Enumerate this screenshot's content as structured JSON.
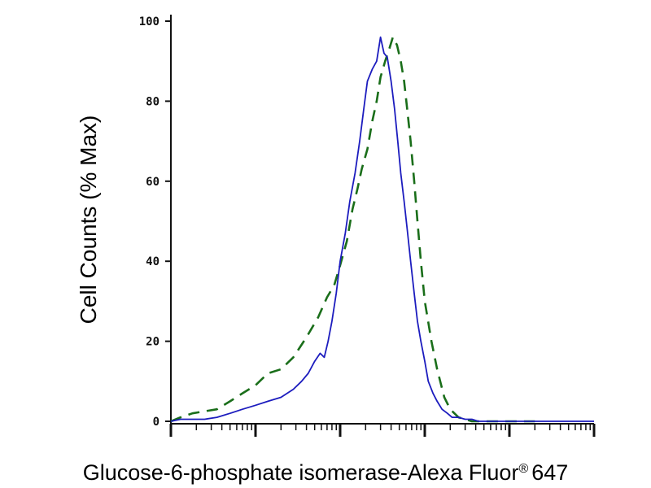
{
  "chart_data": {
    "type": "line",
    "xlabel": "Glucose-6-phosphate isomerase-Alexa Fluor",
    "xlabel_symbol": "®",
    "xlabel_suffix": "647",
    "ylabel": "Cell Counts (% Max)",
    "x_scale": "log",
    "xlim": [
      0.001,
      100
    ],
    "ylim": [
      0,
      100
    ],
    "yticks": [
      0,
      20,
      40,
      60,
      80,
      100
    ],
    "ytick_labels": [
      "0",
      "20",
      "40",
      "60",
      "80",
      "100"
    ],
    "grid": false,
    "legend": false,
    "series": [
      {
        "color": "#1a6e1a",
        "style": "dashed",
        "x": [
          0.001,
          0.0013,
          0.0018,
          0.0025,
          0.0035,
          0.005,
          0.007,
          0.01,
          0.014,
          0.02,
          0.028,
          0.04,
          0.055,
          0.07,
          0.085,
          0.1,
          0.12,
          0.14,
          0.16,
          0.18,
          0.21,
          0.24,
          0.27,
          0.3,
          0.34,
          0.38,
          0.42,
          0.47,
          0.52,
          0.57,
          0.62,
          0.68,
          0.75,
          0.82,
          0.9,
          1.0,
          1.2,
          1.4,
          1.7,
          2.0,
          2.5,
          3.0,
          3.6,
          4.3,
          5.0,
          6.0,
          8.0,
          10,
          14,
          20
        ],
        "y": [
          0,
          1,
          2,
          2.5,
          3,
          5,
          7,
          9,
          12,
          13,
          16,
          21,
          26,
          31,
          34,
          39,
          45,
          53,
          58,
          63,
          68,
          75,
          80,
          86,
          90,
          93,
          96,
          94,
          90,
          85,
          78,
          70,
          60,
          50,
          40,
          30,
          20,
          13,
          6,
          3,
          1,
          0.5,
          0,
          0,
          0,
          0,
          0,
          0,
          0,
          0
        ]
      },
      {
        "color": "#1c1cbe",
        "style": "solid",
        "x": [
          0.001,
          0.0013,
          0.0018,
          0.0025,
          0.0035,
          0.005,
          0.007,
          0.01,
          0.014,
          0.02,
          0.028,
          0.035,
          0.042,
          0.05,
          0.058,
          0.065,
          0.072,
          0.08,
          0.09,
          0.1,
          0.115,
          0.13,
          0.15,
          0.17,
          0.19,
          0.21,
          0.24,
          0.27,
          0.3,
          0.33,
          0.36,
          0.4,
          0.44,
          0.48,
          0.52,
          0.57,
          0.62,
          0.68,
          0.75,
          0.82,
          0.9,
          1.0,
          1.1,
          1.25,
          1.4,
          1.6,
          1.85,
          2.1,
          2.5,
          3.0,
          3.6,
          4.3,
          5.0,
          6.0,
          7.0,
          8.0,
          10,
          12,
          15,
          20,
          30,
          50,
          100
        ],
        "y": [
          0,
          0.5,
          0.5,
          0.5,
          1,
          2,
          3,
          4,
          5,
          6,
          8,
          10,
          12,
          15,
          17,
          16,
          20,
          25,
          32,
          40,
          47,
          55,
          62,
          70,
          78,
          85,
          88,
          90,
          96,
          92,
          91,
          85,
          78,
          70,
          62,
          55,
          48,
          40,
          32,
          25,
          20,
          15,
          10,
          7,
          5,
          3,
          2,
          1,
          1,
          0.5,
          0.5,
          0,
          0,
          0,
          0,
          0,
          0,
          0,
          0,
          0,
          0,
          0,
          0
        ]
      }
    ]
  }
}
